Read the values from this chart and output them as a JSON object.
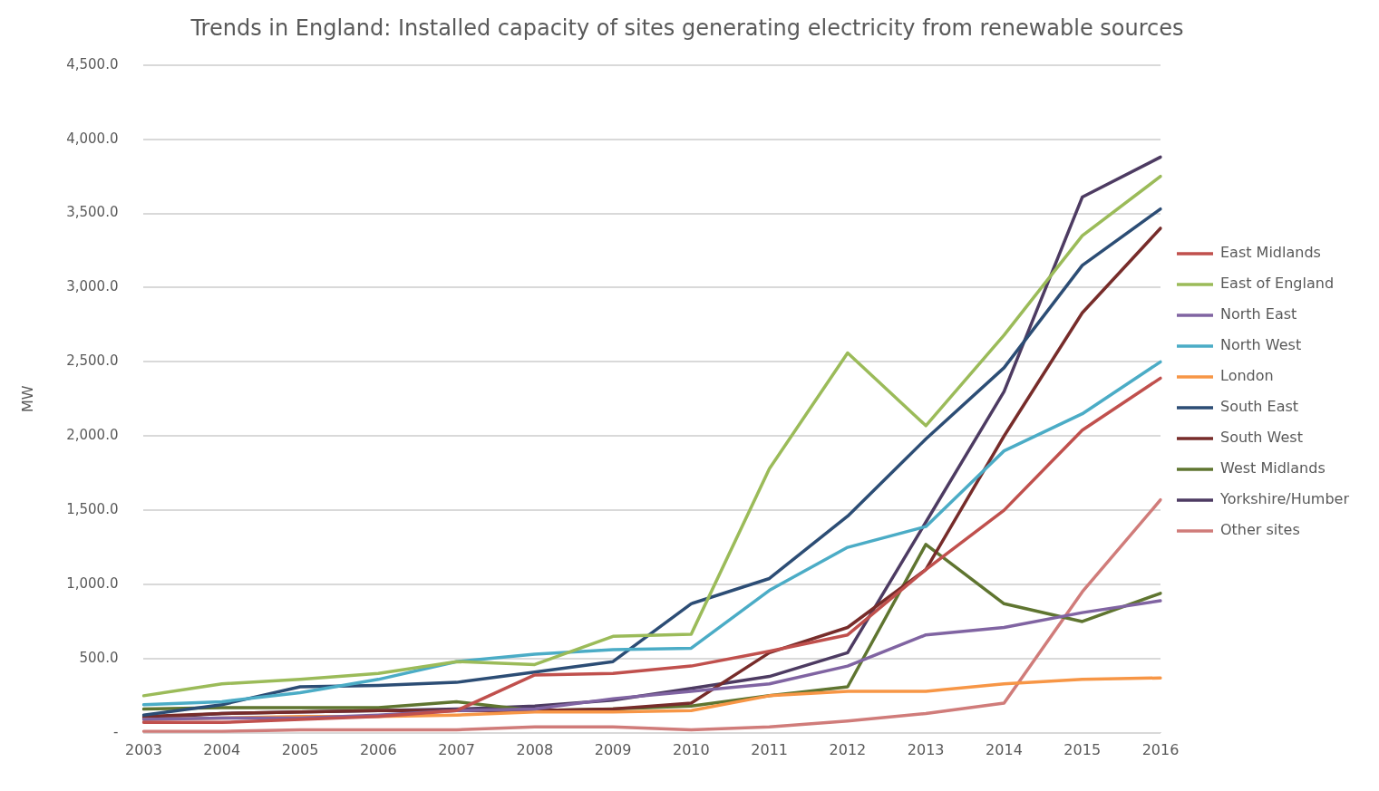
{
  "chart_data": {
    "type": "line",
    "title": "Trends in England: Installed capacity of sites generating electricity from renewable sources",
    "ylabel": "MW",
    "categories": [
      "2003",
      "2004",
      "2005",
      "2006",
      "2007",
      "2008",
      "2009",
      "2010",
      "2011",
      "2012",
      "2013",
      "2014",
      "2015",
      "2016"
    ],
    "series": [
      {
        "name": "East Midlands",
        "color": "#c0504d",
        "values": [
          70,
          70,
          90,
          110,
          150,
          390,
          400,
          450,
          550,
          660,
          1100,
          1500,
          2040,
          2390
        ]
      },
      {
        "name": "East of England",
        "color": "#9bbb59",
        "values": [
          250,
          330,
          360,
          400,
          480,
          460,
          650,
          665,
          1780,
          2560,
          2070,
          2680,
          3350,
          3750
        ]
      },
      {
        "name": "North East",
        "color": "#8064a2",
        "values": [
          90,
          100,
          100,
          120,
          150,
          160,
          230,
          280,
          330,
          450,
          660,
          710,
          810,
          890
        ]
      },
      {
        "name": "North West",
        "color": "#4bacc6",
        "values": [
          190,
          210,
          270,
          360,
          480,
          530,
          560,
          570,
          960,
          1250,
          1390,
          1900,
          2150,
          2500
        ]
      },
      {
        "name": "London",
        "color": "#f79646",
        "values": [
          90,
          100,
          110,
          110,
          120,
          140,
          140,
          150,
          250,
          280,
          280,
          330,
          360,
          370
        ]
      },
      {
        "name": "South East",
        "color": "#2c4d75",
        "values": [
          120,
          190,
          310,
          320,
          340,
          410,
          480,
          870,
          1040,
          1460,
          1980,
          2460,
          3150,
          3530
        ]
      },
      {
        "name": "South West",
        "color": "#772c2a",
        "values": [
          110,
          130,
          140,
          150,
          150,
          150,
          160,
          200,
          540,
          710,
          1100,
          2000,
          2830,
          3400
        ]
      },
      {
        "name": "West Midlands",
        "color": "#5f7530",
        "values": [
          160,
          170,
          170,
          170,
          210,
          150,
          160,
          180,
          250,
          310,
          1270,
          870,
          750,
          940
        ]
      },
      {
        "name": "Yorkshire/Humber",
        "color": "#4d3b62",
        "values": [
          100,
          130,
          140,
          150,
          160,
          180,
          220,
          300,
          380,
          540,
          1420,
          2300,
          3610,
          3880
        ]
      },
      {
        "name": "Other sites",
        "color": "#d07c7a",
        "values": [
          10,
          10,
          20,
          20,
          20,
          40,
          40,
          20,
          40,
          80,
          130,
          200,
          950,
          1570
        ]
      }
    ],
    "ylim": [
      0,
      4500
    ],
    "yticks": [
      {
        "value": 0,
        "label": "-"
      },
      {
        "value": 500,
        "label": "500.0"
      },
      {
        "value": 1000,
        "label": "1,000.0"
      },
      {
        "value": 1500,
        "label": "1,500.0"
      },
      {
        "value": 2000,
        "label": "2,000.0"
      },
      {
        "value": 2500,
        "label": "2,500.0"
      },
      {
        "value": 3000,
        "label": "3,000.0"
      },
      {
        "value": 3500,
        "label": "3,500.0"
      },
      {
        "value": 4000,
        "label": "4,000.0"
      },
      {
        "value": 4500,
        "label": "4,500.0"
      }
    ],
    "grid": "y",
    "legend": "right",
    "marker": "none",
    "line_style": "solid"
  }
}
